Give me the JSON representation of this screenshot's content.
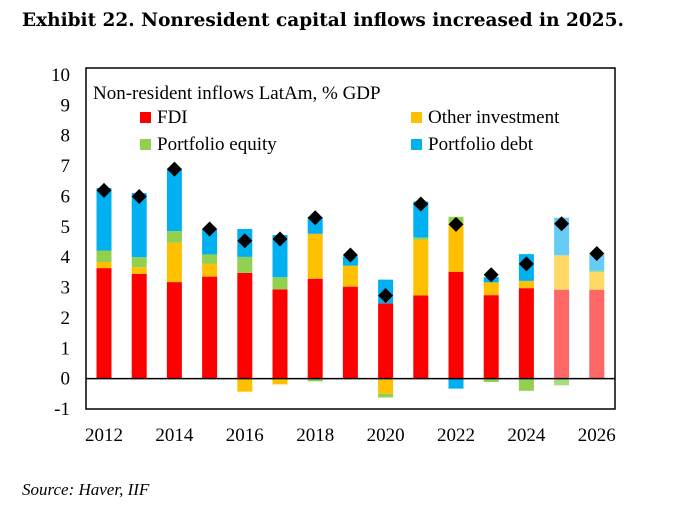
{
  "title": "Exhibit 22. Nonresident capital inflows increased in 2025.",
  "source": "Source: Haver, IIF",
  "chart_data": {
    "type": "bar",
    "stacked": true,
    "title": "Non-resident inflows LatAm, % GDP",
    "xlabel": "",
    "ylabel": "",
    "ylim": [
      -1,
      10
    ],
    "yticks": [
      -1,
      0,
      1,
      2,
      3,
      4,
      5,
      6,
      7,
      8,
      9,
      10
    ],
    "xtick_labels": [
      "2012",
      "2014",
      "2016",
      "2018",
      "2020",
      "2022",
      "2024",
      "2026"
    ],
    "grid": false,
    "legend_position": "top",
    "categories": [
      "2012",
      "2013",
      "2014",
      "2015",
      "2016",
      "2017",
      "2018",
      "2019",
      "2020",
      "2021",
      "2022",
      "2023",
      "2024",
      "2025",
      "2026"
    ],
    "projected_categories": [
      "2025",
      "2026"
    ],
    "series": [
      {
        "name": "FDI",
        "color": "#FF0000",
        "projected_color": "#FF6666",
        "values": [
          3.64,
          3.45,
          3.18,
          3.36,
          3.48,
          2.94,
          3.29,
          3.03,
          2.48,
          2.74,
          3.52,
          2.75,
          2.98,
          2.93,
          2.93
        ]
      },
      {
        "name": "Other investment",
        "color": "#FFC000",
        "projected_color": "#FFD966",
        "values": [
          0.2,
          0.22,
          1.3,
          0.42,
          -0.43,
          -0.19,
          1.48,
          0.69,
          -0.5,
          1.83,
          1.61,
          0.42,
          0.24,
          1.13,
          0.58
        ]
      },
      {
        "name": "Portfolio equity",
        "color": "#92D050",
        "projected_color": "#A9DC7F",
        "values": [
          0.38,
          0.33,
          0.38,
          0.31,
          0.53,
          0.4,
          -0.09,
          0.0,
          -0.12,
          0.08,
          0.2,
          -0.11,
          -0.4,
          -0.22,
          0.04
        ]
      },
      {
        "name": "Portfolio debt",
        "color": "#00B0F0",
        "projected_color": "#66CCF5",
        "values": [
          2.06,
          2.11,
          2.06,
          0.84,
          0.92,
          1.39,
          0.55,
          0.3,
          0.78,
          1.18,
          -0.33,
          0.17,
          0.88,
          1.24,
          0.53
        ]
      }
    ],
    "total_markers": {
      "marker": "diamond",
      "color": "#000000",
      "values": [
        6.2,
        6.0,
        6.9,
        4.93,
        4.54,
        4.6,
        5.3,
        4.07,
        2.74,
        5.75,
        5.08,
        3.42,
        3.78,
        5.1,
        4.12
      ]
    }
  }
}
